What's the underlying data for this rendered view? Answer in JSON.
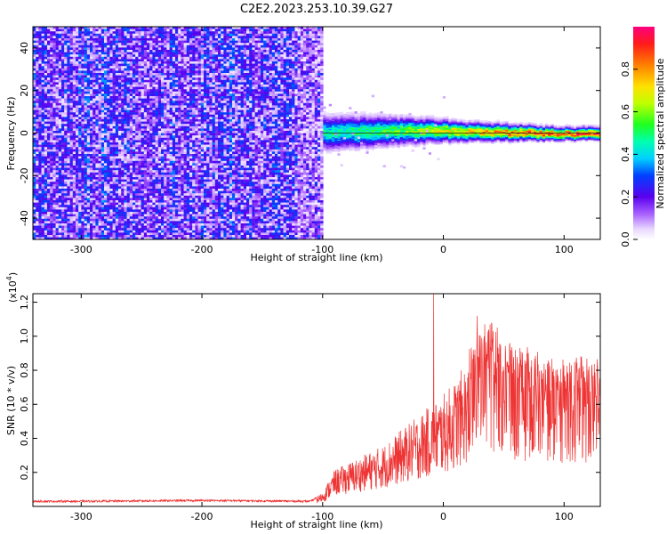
{
  "title": "C2E2.2023.253.10.39.G27",
  "chart_data": [
    {
      "type": "heatmap",
      "xlabel": "Height of straight line (km)",
      "ylabel": "Frequency (Hz)",
      "xlim": [
        -340,
        130
      ],
      "ylim": [
        -50,
        50
      ],
      "xticks": [
        -300,
        -200,
        -100,
        0,
        100
      ],
      "yticks": [
        -40,
        -20,
        0,
        20,
        40
      ],
      "noise_region_x": [
        -340,
        -100
      ],
      "signal_band": [
        {
          "x": -120,
          "center": 0,
          "halfwidth": 6,
          "amplitude": 0.45
        },
        {
          "x": -60,
          "center": 1,
          "halfwidth": 5,
          "amplitude": 0.55
        },
        {
          "x": -20,
          "center": 1.5,
          "halfwidth": 4,
          "amplitude": 0.65
        },
        {
          "x": 20,
          "center": 1,
          "halfwidth": 3,
          "amplitude": 0.8
        },
        {
          "x": 60,
          "center": 0.5,
          "halfwidth": 2.5,
          "amplitude": 0.9
        },
        {
          "x": 100,
          "center": 0,
          "halfwidth": 2,
          "amplitude": 0.95
        },
        {
          "x": 130,
          "center": 0,
          "halfwidth": 2,
          "amplitude": 0.95
        }
      ],
      "colorbar": {
        "label": "Normalized spectral amplitude",
        "ticks": [
          "0.0",
          "0.2",
          "0.4",
          "0.6",
          "0.8"
        ],
        "range": [
          0,
          1
        ]
      },
      "grid": false
    },
    {
      "type": "line",
      "xlabel": "Height of straight line (km)",
      "ylabel": "SNR (10 * v/v)",
      "multiplier": "(x10",
      "multiplier_exp": "4",
      "multiplier_close": ")",
      "xlim": [
        -340,
        130
      ],
      "ylim": [
        0,
        1.25
      ],
      "xticks": [
        -300,
        -200,
        -100,
        0,
        100
      ],
      "yticks": [
        "0.2",
        "0.4",
        "0.6",
        "0.8",
        "1.0",
        "1.2"
      ],
      "series": [
        {
          "color": "#ee3333",
          "envelope_x": [
            -340,
            -300,
            -200,
            -110,
            -100,
            -90,
            -70,
            -50,
            -30,
            -10,
            0,
            10,
            20,
            30,
            40,
            50,
            60,
            70,
            80,
            90,
            100,
            110,
            120,
            130
          ],
          "envelope_y": [
            0.03,
            0.03,
            0.035,
            0.03,
            0.07,
            0.18,
            0.24,
            0.3,
            0.4,
            0.5,
            0.55,
            0.62,
            0.72,
            0.85,
            0.88,
            0.82,
            0.78,
            0.75,
            0.72,
            0.7,
            0.7,
            0.72,
            0.7,
            0.7
          ],
          "spike_x": [
            -8,
            28,
            40
          ],
          "spike_y": [
            1.25,
            1.12,
            1.08
          ]
        }
      ],
      "grid": false
    }
  ]
}
